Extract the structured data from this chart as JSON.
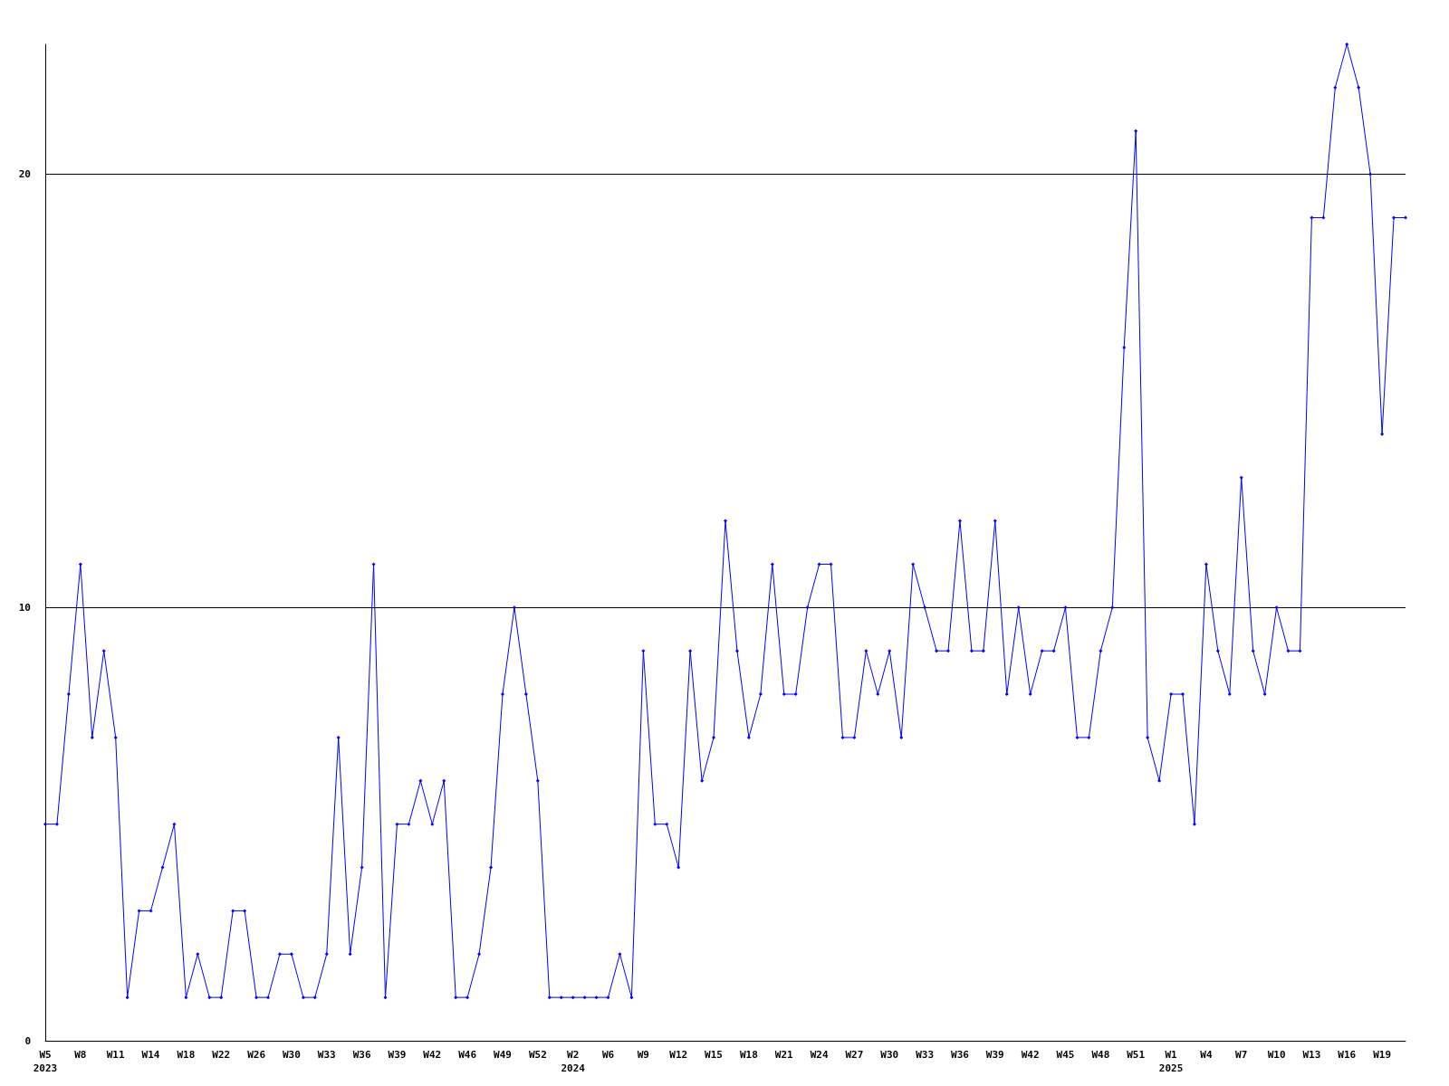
{
  "chart_data": {
    "type": "line",
    "categories": [
      "W5\n2023",
      null,
      null,
      "W8",
      null,
      null,
      "W11",
      null,
      null,
      "W14",
      null,
      null,
      "W18",
      null,
      null,
      "W22",
      null,
      null,
      "W26",
      null,
      null,
      "W30",
      null,
      null,
      "W33",
      null,
      null,
      "W36",
      null,
      null,
      "W39",
      null,
      null,
      "W42",
      null,
      null,
      "W46",
      null,
      null,
      "W49",
      null,
      null,
      "W52",
      null,
      null,
      "W2\n2024",
      null,
      null,
      "W6",
      null,
      null,
      "W9",
      null,
      null,
      "W12",
      null,
      null,
      "W15",
      null,
      null,
      "W18",
      null,
      null,
      "W21",
      null,
      null,
      "W24",
      null,
      null,
      "W27",
      null,
      null,
      "W30",
      null,
      null,
      "W33",
      null,
      null,
      "W36",
      null,
      null,
      "W39",
      null,
      null,
      "W42",
      null,
      null,
      "W45",
      null,
      null,
      "W48",
      null,
      null,
      "W51",
      null,
      null,
      "W1\n2025",
      null,
      null,
      "W4",
      null,
      null,
      "W7",
      null,
      null,
      "W10",
      null,
      null,
      "W13",
      null,
      null,
      "W16",
      null,
      null,
      "W19",
      null,
      null
    ],
    "series": [
      {
        "color": "#0000ff",
        "values": [
          5,
          5,
          8,
          11,
          7,
          9,
          7,
          1,
          3,
          3,
          4,
          5,
          1,
          2,
          1,
          1,
          3,
          3,
          1,
          1,
          2,
          2,
          1,
          1,
          2,
          7,
          2,
          4,
          11,
          1,
          5,
          5,
          6,
          5,
          6,
          1,
          1,
          2,
          4,
          8,
          10,
          8,
          6,
          1,
          1,
          1,
          1,
          1,
          1,
          2,
          1,
          9,
          5,
          5,
          4,
          9,
          6,
          7,
          12,
          9,
          7,
          8,
          11,
          8,
          8,
          10,
          11,
          11,
          7,
          7,
          9,
          8,
          9,
          7,
          11,
          10,
          9,
          9,
          12,
          9,
          9,
          12,
          8,
          10,
          8,
          9,
          9,
          10,
          7,
          7,
          9,
          10,
          16,
          21,
          7,
          6,
          8,
          8,
          5,
          11,
          9,
          8,
          13,
          9,
          8,
          10,
          9,
          9,
          19,
          19,
          22,
          23,
          22,
          20,
          14,
          19,
          19
        ]
      }
    ],
    "ylim": [
      0,
      23
    ],
    "yticks": [
      0,
      10,
      20
    ],
    "grid": "y",
    "marker": "diamond",
    "line_style": "solid"
  }
}
